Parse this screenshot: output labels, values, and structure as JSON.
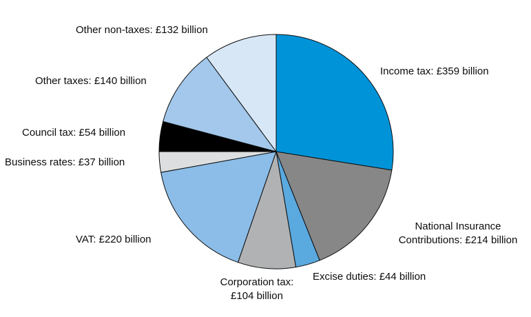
{
  "chart_data": {
    "type": "pie",
    "unit": "£ billion",
    "start_angle_deg": 0,
    "direction": "clockwise",
    "slices": [
      {
        "label": "Income tax: £359 billion",
        "value": 359,
        "color": "#0093d8"
      },
      {
        "label": "National Insurance\nContributions: £214 billion",
        "value": 214,
        "color": "#878787"
      },
      {
        "label": "Excise duties: £44 billion",
        "value": 44,
        "color": "#5aa9df"
      },
      {
        "label": "Corporation tax:\n£104 billion",
        "value": 104,
        "color": "#b1b2b4"
      },
      {
        "label": "VAT: £220 billion",
        "value": 220,
        "color": "#8bbde8"
      },
      {
        "label": "Business rates: £37 billion",
        "value": 37,
        "color": "#dcdedf"
      },
      {
        "label": "Council tax: £54 billion",
        "value": 54,
        "color": "#000000"
      },
      {
        "label": "Other taxes: £140 billion",
        "value": 140,
        "color": "#a3c8eb"
      },
      {
        "label": "Other non-taxes: £132 billion",
        "value": 132,
        "color": "#d7e7f6"
      }
    ]
  }
}
